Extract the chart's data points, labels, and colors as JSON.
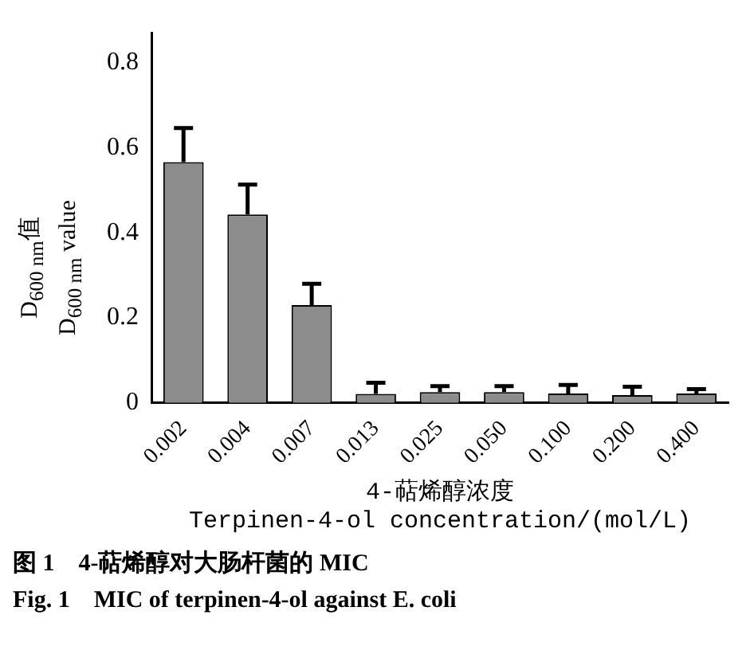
{
  "chart_data": {
    "type": "bar",
    "title": "图 1　4-萜烯醇对大肠杆菌的 MIC",
    "subtitle": "Fig. 1　MIC of terpinen-4-ol against E. coli",
    "xlabel": "4-萜烯醇浓度\nTerpinen-4-ol concentration/(mol/L)",
    "ylabel": "D$_{600 nm}$值\nD$_{600 nm}$ value",
    "categories": [
      "0.002",
      "0.004",
      "0.007",
      "0.013",
      "0.025",
      "0.050",
      "0.100",
      "0.200",
      "0.400"
    ],
    "values": [
      0.566,
      0.443,
      0.23,
      0.021,
      0.025,
      0.025,
      0.022,
      0.018,
      0.022
    ],
    "errors": [
      [
        0.566,
        0.646
      ],
      [
        0.443,
        0.513
      ],
      [
        0.23,
        0.28
      ],
      [
        0.021,
        0.047
      ],
      [
        0.025,
        0.039
      ],
      [
        0.025,
        0.039
      ],
      [
        0.022,
        0.042
      ],
      [
        0.018,
        0.038
      ],
      [
        0.022,
        0.032
      ]
    ],
    "color": "#8c8c8c",
    "ylim": [
      0,
      0.87
    ],
    "yticks": [
      0,
      0.2,
      0.4,
      0.6,
      0.8
    ],
    "grid": false,
    "legend": false
  }
}
